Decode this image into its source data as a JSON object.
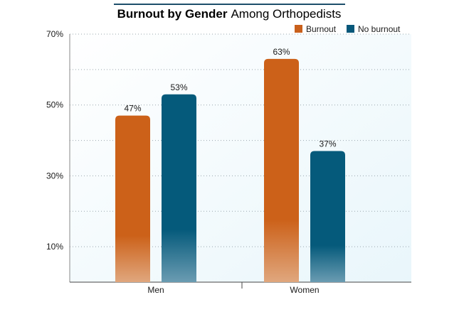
{
  "chart_data": {
    "type": "bar",
    "title_bold": "Burnout by Gender",
    "title_rest": "Among Orthopedists",
    "categories": [
      "Men",
      "Women"
    ],
    "series": [
      {
        "name": "Burnout",
        "values": [
          47,
          63
        ],
        "labels": [
          "47%",
          "63%"
        ],
        "color": "#c9601c"
      },
      {
        "name": "No burnout",
        "values": [
          53,
          37
        ],
        "labels": [
          "53%",
          "37%"
        ],
        "color": "#07587a"
      }
    ],
    "ylim": [
      0,
      70
    ],
    "yticks": [
      70,
      50,
      30,
      10
    ],
    "ytick_labels": [
      "70%",
      "50%",
      "30%",
      "10%"
    ],
    "grid": true,
    "legend_position": "top-right",
    "accent_color": "#1d4e6b"
  }
}
